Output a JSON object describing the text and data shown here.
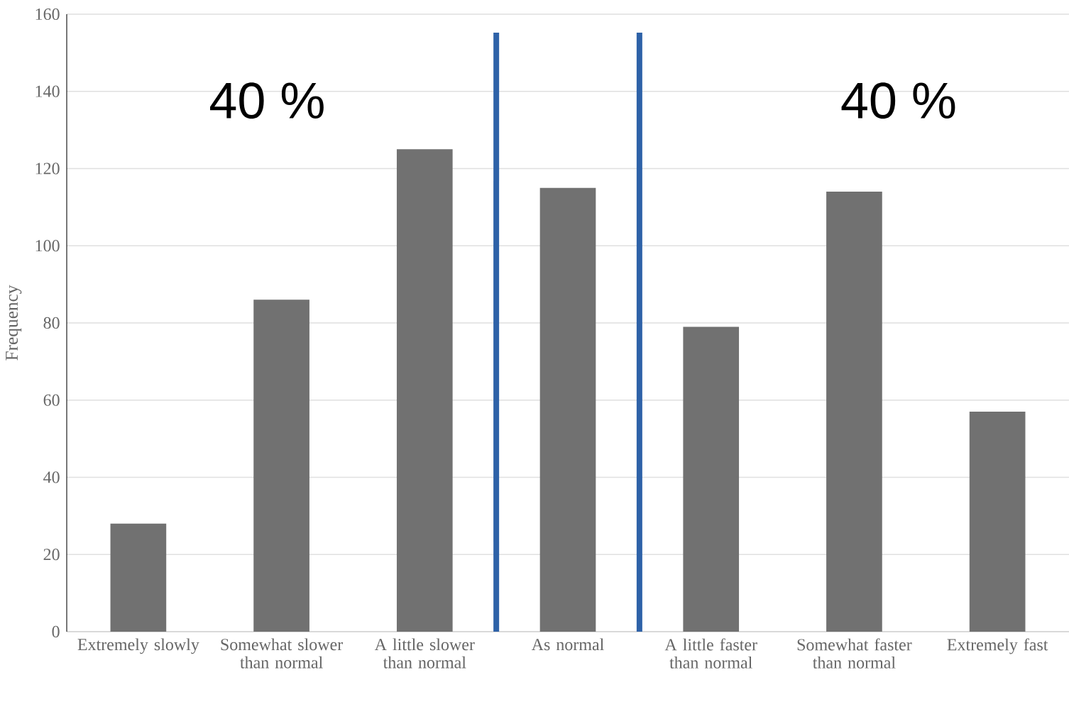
{
  "chart_data": {
    "type": "bar",
    "ylabel": "Frequency",
    "categories": [
      "Extremely slowly",
      "Somewhat slower than normal",
      "A little slower than normal",
      "As normal",
      "A little faster than normal",
      "Somewhat faster than normal",
      "Extremely fast"
    ],
    "values": [
      28,
      86,
      125,
      115,
      79,
      114,
      57
    ],
    "color": "#717171",
    "ylim": [
      0,
      160
    ],
    "yticks": [
      0,
      20,
      40,
      60,
      80,
      100,
      120,
      140,
      160
    ],
    "grid": "y",
    "annotations": [
      "40 %",
      "40 %"
    ]
  }
}
